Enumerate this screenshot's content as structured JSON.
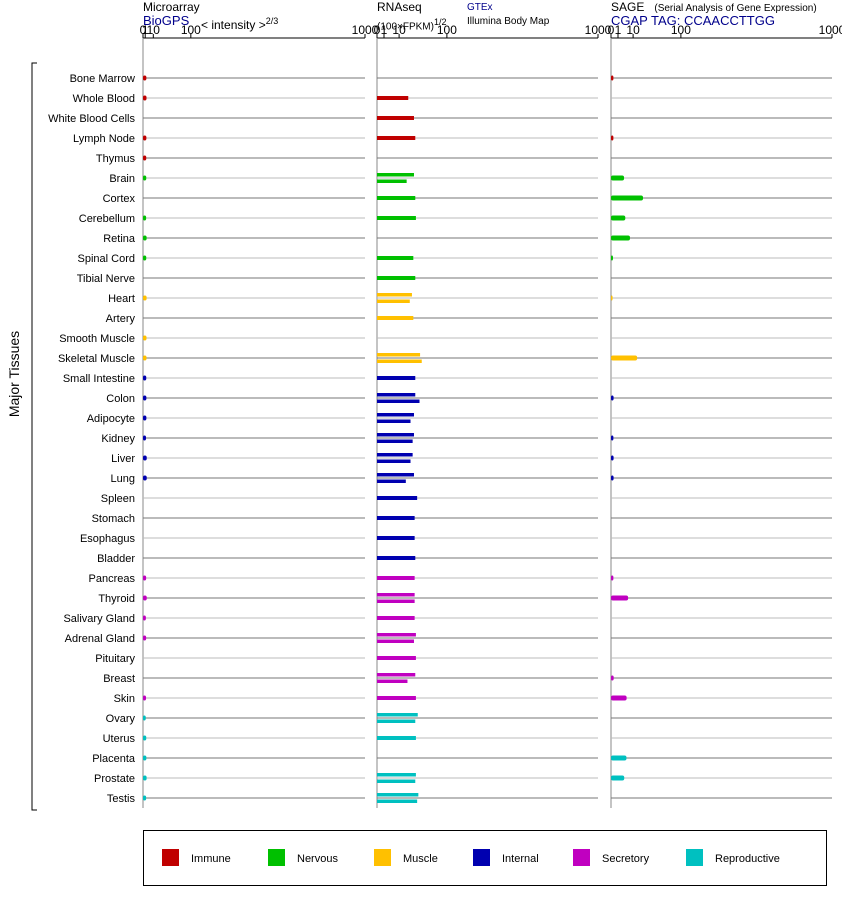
{
  "headers": {
    "microarray": {
      "title": "Microarray",
      "source": "BioGPS",
      "unit_prefix": "< intensity >",
      "unit_exp": "2/3"
    },
    "rnaseq": {
      "title": "RNAseq",
      "unit_prefix": "(100×FPKM)",
      "unit_exp": "1/2",
      "source_a": "GTEx",
      "source_b": "Illumina Body Map"
    },
    "sage": {
      "title": "SAGE",
      "subtitle": "(Serial Analysis of Gene Expression)",
      "tag": "CGAP TAG: CCAACCTTGG"
    }
  },
  "legend": [
    {
      "label": "Immune",
      "color": "#c00000"
    },
    {
      "label": "Nervous",
      "color": "#00c000"
    },
    {
      "label": "Muscle",
      "color": "#ffc000"
    },
    {
      "label": "Internal",
      "color": "#0000b0"
    },
    {
      "label": "Secretory",
      "color": "#c000c0"
    },
    {
      "label": "Reproductive",
      "color": "#00c0c0"
    }
  ],
  "chart_data": {
    "type": "bar",
    "ylabel": "Major Tissues",
    "x_ticks": [
      "0",
      "1",
      "10",
      "100",
      "1000"
    ],
    "xlim": [
      0,
      1000
    ],
    "categories": [
      "Bone Marrow",
      "Whole Blood",
      "White Blood Cells",
      "Lymph Node",
      "Thymus",
      "Brain",
      "Cortex",
      "Cerebellum",
      "Retina",
      "Spinal Cord",
      "Tibial Nerve",
      "Heart",
      "Artery",
      "Smooth Muscle",
      "Skeletal Muscle",
      "Small Intestine",
      "Colon",
      "Adipocyte",
      "Kidney",
      "Liver",
      "Lung",
      "Spleen",
      "Stomach",
      "Esophagus",
      "Bladder",
      "Pancreas",
      "Thyroid",
      "Salivary Gland",
      "Adrenal Gland",
      "Pituitary",
      "Breast",
      "Skin",
      "Ovary",
      "Uterus",
      "Placenta",
      "Prostate",
      "Testis"
    ],
    "groups": [
      "Immune",
      "Immune",
      "Immune",
      "Immune",
      "Immune",
      "Nervous",
      "Nervous",
      "Nervous",
      "Nervous",
      "Nervous",
      "Nervous",
      "Muscle",
      "Muscle",
      "Muscle",
      "Muscle",
      "Internal",
      "Internal",
      "Internal",
      "Internal",
      "Internal",
      "Internal",
      "Internal",
      "Internal",
      "Internal",
      "Internal",
      "Secretory",
      "Secretory",
      "Secretory",
      "Secretory",
      "Secretory",
      "Secretory",
      "Secretory",
      "Reproductive",
      "Reproductive",
      "Reproductive",
      "Reproductive",
      "Reproductive"
    ],
    "microarray": [
      1.9,
      2.0,
      null,
      1.9,
      1.8,
      1.8,
      null,
      1.7,
      2.1,
      1.8,
      null,
      2.1,
      null,
      2.0,
      2.0,
      1.8,
      1.9,
      1.9,
      1.6,
      2.2,
      2.2,
      null,
      null,
      null,
      null,
      1.7,
      2.2,
      1.5,
      1.7,
      null,
      null,
      1.6,
      1.4,
      1.8,
      1.9,
      2.1,
      1.7
    ],
    "gtex": [
      null,
      20,
      28,
      null,
      null,
      28,
      30,
      31,
      null,
      27,
      30,
      25,
      27,
      null,
      38,
      30,
      30,
      28,
      28,
      26,
      28,
      33,
      29,
      29,
      30,
      29,
      29,
      29,
      31,
      31,
      30,
      31,
      34,
      31,
      null,
      31,
      35
    ],
    "illumina": [
      null,
      null,
      null,
      30,
      null,
      18,
      null,
      null,
      null,
      null,
      null,
      22,
      null,
      null,
      41,
      null,
      37,
      23,
      26,
      23,
      17,
      null,
      null,
      null,
      null,
      null,
      29,
      null,
      28,
      null,
      19,
      null,
      30,
      null,
      null,
      30,
      33
    ],
    "sage": [
      0.12,
      null,
      null,
      0.12,
      null,
      3.5,
      21.0,
      4.2,
      7.4,
      0.08,
      null,
      0.05,
      null,
      null,
      14.0,
      null,
      0.14,
      null,
      0.12,
      0.14,
      0.14,
      null,
      null,
      null,
      null,
      0.12,
      6.0,
      null,
      null,
      null,
      0.15,
      5.0,
      null,
      null,
      4.9,
      3.6,
      null
    ]
  }
}
